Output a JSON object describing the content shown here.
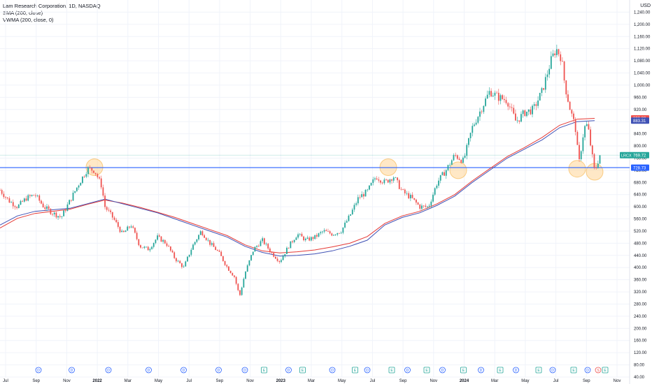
{
  "header": {
    "title": "Lam Research Corporation, 1D, NASDAQ",
    "indicator1": "SMA (200, close)",
    "indicator2": "VWMA (200, close, 0)"
  },
  "currency": "USD",
  "colors": {
    "up": "#26a69a",
    "down": "#ef5350",
    "sma": "#3f51b5",
    "vwma": "#e53935",
    "hline": "#2962ff",
    "circle_fill": "#ffcc80",
    "circle_stroke": "#f5a623",
    "grid": "#f0f3fa",
    "axis_text": "#131722",
    "event_dividend": "#2962ff",
    "event_earnings": "#26a69a",
    "event_split": "#ef5350"
  },
  "chart_data": {
    "type": "candlestick",
    "title": "Lam Research Corporation, 1D, NASDAQ",
    "ylabel": "USD",
    "ylim": [
      40,
      1280
    ],
    "x_ticks": [
      "Jul",
      "Sep",
      "Nov",
      "2022",
      "Mar",
      "May",
      "Jul",
      "Sep",
      "Nov",
      "2023",
      "Mar",
      "May",
      "Jul",
      "Sep",
      "Nov",
      "2024",
      "Mar",
      "May",
      "Jul",
      "Sep",
      "Nov"
    ],
    "y_ticks": [
      "40.00",
      "80.00",
      "120.00",
      "160.00",
      "200.00",
      "240.00",
      "280.00",
      "320.00",
      "360.00",
      "400.00",
      "440.00",
      "480.00",
      "520.00",
      "560.00",
      "600.00",
      "640.00",
      "680.00",
      "720.00",
      "760.00",
      "800.00",
      "840.00",
      "880.00",
      "920.00",
      "960.00",
      "1,000.00",
      "1,040.00",
      "1,080.00",
      "1,120.00",
      "1,160.00",
      "1,200.00",
      "1,240.00"
    ],
    "price_path": [
      {
        "x": 0.0,
        "y": 655
      },
      {
        "x": 0.5,
        "y": 620
      },
      {
        "x": 1.0,
        "y": 600
      },
      {
        "x": 1.5,
        "y": 628
      },
      {
        "x": 2.0,
        "y": 640
      },
      {
        "x": 2.5,
        "y": 600
      },
      {
        "x": 3.0,
        "y": 580
      },
      {
        "x": 3.5,
        "y": 565
      },
      {
        "x": 4.0,
        "y": 620
      },
      {
        "x": 4.5,
        "y": 675
      },
      {
        "x": 5.0,
        "y": 725
      },
      {
        "x": 5.4,
        "y": 720
      },
      {
        "x": 5.8,
        "y": 670
      },
      {
        "x": 6.0,
        "y": 600
      },
      {
        "x": 6.5,
        "y": 560
      },
      {
        "x": 7.0,
        "y": 510
      },
      {
        "x": 7.5,
        "y": 540
      },
      {
        "x": 8.0,
        "y": 470
      },
      {
        "x": 8.5,
        "y": 460
      },
      {
        "x": 9.0,
        "y": 500
      },
      {
        "x": 9.5,
        "y": 480
      },
      {
        "x": 10.0,
        "y": 430
      },
      {
        "x": 10.5,
        "y": 400
      },
      {
        "x": 11.0,
        "y": 470
      },
      {
        "x": 11.5,
        "y": 520
      },
      {
        "x": 12.0,
        "y": 480
      },
      {
        "x": 12.5,
        "y": 450
      },
      {
        "x": 13.0,
        "y": 400
      },
      {
        "x": 13.4,
        "y": 370
      },
      {
        "x": 13.7,
        "y": 305
      },
      {
        "x": 14.0,
        "y": 380
      },
      {
        "x": 14.5,
        "y": 460
      },
      {
        "x": 15.0,
        "y": 490
      },
      {
        "x": 15.5,
        "y": 450
      },
      {
        "x": 16.0,
        "y": 420
      },
      {
        "x": 16.5,
        "y": 470
      },
      {
        "x": 17.0,
        "y": 510
      },
      {
        "x": 17.5,
        "y": 490
      },
      {
        "x": 18.0,
        "y": 500
      },
      {
        "x": 18.5,
        "y": 520
      },
      {
        "x": 19.0,
        "y": 510
      },
      {
        "x": 19.5,
        "y": 520
      },
      {
        "x": 20.0,
        "y": 570
      },
      {
        "x": 20.5,
        "y": 630
      },
      {
        "x": 21.0,
        "y": 650
      },
      {
        "x": 21.5,
        "y": 700
      },
      {
        "x": 22.0,
        "y": 680
      },
      {
        "x": 22.5,
        "y": 700
      },
      {
        "x": 23.0,
        "y": 650
      },
      {
        "x": 23.5,
        "y": 630
      },
      {
        "x": 24.0,
        "y": 600
      },
      {
        "x": 24.5,
        "y": 600
      },
      {
        "x": 25.0,
        "y": 680
      },
      {
        "x": 25.5,
        "y": 720
      },
      {
        "x": 26.0,
        "y": 770
      },
      {
        "x": 26.5,
        "y": 750
      },
      {
        "x": 27.0,
        "y": 860
      },
      {
        "x": 27.5,
        "y": 920
      },
      {
        "x": 28.0,
        "y": 980
      },
      {
        "x": 28.5,
        "y": 960
      },
      {
        "x": 29.0,
        "y": 950
      },
      {
        "x": 29.5,
        "y": 880
      },
      {
        "x": 30.0,
        "y": 910
      },
      {
        "x": 30.5,
        "y": 920
      },
      {
        "x": 31.0,
        "y": 980
      },
      {
        "x": 31.5,
        "y": 1080
      },
      {
        "x": 31.8,
        "y": 1120
      },
      {
        "x": 32.1,
        "y": 1090
      },
      {
        "x": 32.3,
        "y": 1000
      },
      {
        "x": 32.6,
        "y": 920
      },
      {
        "x": 32.9,
        "y": 860
      },
      {
        "x": 33.1,
        "y": 740
      },
      {
        "x": 33.4,
        "y": 860
      },
      {
        "x": 33.6,
        "y": 870
      },
      {
        "x": 33.8,
        "y": 790
      },
      {
        "x": 34.0,
        "y": 715
      },
      {
        "x": 34.3,
        "y": 769.72
      }
    ],
    "sma_200": [
      {
        "x": 0.0,
        "y": 540
      },
      {
        "x": 1.0,
        "y": 570
      },
      {
        "x": 2.0,
        "y": 585
      },
      {
        "x": 3.0,
        "y": 590
      },
      {
        "x": 4.0,
        "y": 595
      },
      {
        "x": 5.0,
        "y": 610
      },
      {
        "x": 6.0,
        "y": 625
      },
      {
        "x": 7.0,
        "y": 610
      },
      {
        "x": 8.0,
        "y": 595
      },
      {
        "x": 9.0,
        "y": 580
      },
      {
        "x": 10.0,
        "y": 560
      },
      {
        "x": 11.0,
        "y": 540
      },
      {
        "x": 12.0,
        "y": 520
      },
      {
        "x": 13.0,
        "y": 500
      },
      {
        "x": 14.0,
        "y": 470
      },
      {
        "x": 15.0,
        "y": 450
      },
      {
        "x": 16.0,
        "y": 438
      },
      {
        "x": 17.0,
        "y": 440
      },
      {
        "x": 18.0,
        "y": 445
      },
      {
        "x": 19.0,
        "y": 455
      },
      {
        "x": 20.0,
        "y": 470
      },
      {
        "x": 21.0,
        "y": 490
      },
      {
        "x": 22.0,
        "y": 540
      },
      {
        "x": 23.0,
        "y": 565
      },
      {
        "x": 24.0,
        "y": 580
      },
      {
        "x": 25.0,
        "y": 605
      },
      {
        "x": 26.0,
        "y": 635
      },
      {
        "x": 27.0,
        "y": 680
      },
      {
        "x": 28.0,
        "y": 720
      },
      {
        "x": 29.0,
        "y": 760
      },
      {
        "x": 30.0,
        "y": 790
      },
      {
        "x": 31.0,
        "y": 820
      },
      {
        "x": 32.0,
        "y": 860
      },
      {
        "x": 33.0,
        "y": 880
      },
      {
        "x": 34.0,
        "y": 883.31
      }
    ],
    "vwma_200": [
      {
        "x": 0.0,
        "y": 530
      },
      {
        "x": 1.0,
        "y": 562
      },
      {
        "x": 2.0,
        "y": 578
      },
      {
        "x": 3.0,
        "y": 585
      },
      {
        "x": 4.0,
        "y": 592
      },
      {
        "x": 5.0,
        "y": 608
      },
      {
        "x": 6.0,
        "y": 622
      },
      {
        "x": 7.0,
        "y": 612
      },
      {
        "x": 8.0,
        "y": 598
      },
      {
        "x": 9.0,
        "y": 582
      },
      {
        "x": 10.0,
        "y": 565
      },
      {
        "x": 11.0,
        "y": 545
      },
      {
        "x": 12.0,
        "y": 525
      },
      {
        "x": 13.0,
        "y": 505
      },
      {
        "x": 14.0,
        "y": 475
      },
      {
        "x": 15.0,
        "y": 455
      },
      {
        "x": 16.0,
        "y": 448
      },
      {
        "x": 17.0,
        "y": 452
      },
      {
        "x": 18.0,
        "y": 458
      },
      {
        "x": 19.0,
        "y": 468
      },
      {
        "x": 20.0,
        "y": 480
      },
      {
        "x": 21.0,
        "y": 502
      },
      {
        "x": 22.0,
        "y": 545
      },
      {
        "x": 23.0,
        "y": 570
      },
      {
        "x": 24.0,
        "y": 585
      },
      {
        "x": 25.0,
        "y": 610
      },
      {
        "x": 26.0,
        "y": 640
      },
      {
        "x": 27.0,
        "y": 685
      },
      {
        "x": 28.0,
        "y": 725
      },
      {
        "x": 29.0,
        "y": 765
      },
      {
        "x": 30.0,
        "y": 795
      },
      {
        "x": 31.0,
        "y": 828
      },
      {
        "x": 32.0,
        "y": 868
      },
      {
        "x": 33.0,
        "y": 888
      },
      {
        "x": 34.0,
        "y": 890.8
      }
    ],
    "horizontal_line": {
      "value": 728.73,
      "label": "728.73"
    },
    "price_labels": [
      {
        "name": "LRCX",
        "value": 769.72,
        "text": "769.72",
        "color": "#26a69a"
      },
      {
        "name": "",
        "value": 890.8,
        "text": "890.80",
        "color": "#ef5350"
      },
      {
        "name": "",
        "value": 883.31,
        "text": "883.31",
        "color": "#3f51b5"
      },
      {
        "name": "",
        "value": 728.73,
        "text": "728.73",
        "color": "#2962ff"
      }
    ],
    "highlights": [
      {
        "x": 5.4,
        "y": 730
      },
      {
        "x": 22.2,
        "y": 730
      },
      {
        "x": 26.2,
        "y": 720
      },
      {
        "x": 33.0,
        "y": 725
      },
      {
        "x": 34.0,
        "y": 715
      }
    ],
    "events": [
      {
        "x": 2.2,
        "type": "D"
      },
      {
        "x": 4.1,
        "type": "D"
      },
      {
        "x": 6.2,
        "type": "D"
      },
      {
        "x": 8.5,
        "type": "D"
      },
      {
        "x": 10.5,
        "type": "D"
      },
      {
        "x": 12.5,
        "type": "D"
      },
      {
        "x": 14.0,
        "type": "D"
      },
      {
        "x": 15.1,
        "type": "E"
      },
      {
        "x": 16.5,
        "type": "D"
      },
      {
        "x": 17.3,
        "type": "E"
      },
      {
        "x": 19.0,
        "type": "D"
      },
      {
        "x": 20.3,
        "type": "E"
      },
      {
        "x": 21.0,
        "type": "D"
      },
      {
        "x": 22.4,
        "type": "E"
      },
      {
        "x": 23.3,
        "type": "D"
      },
      {
        "x": 24.4,
        "type": "E"
      },
      {
        "x": 25.3,
        "type": "D"
      },
      {
        "x": 26.5,
        "type": "E"
      },
      {
        "x": 27.5,
        "type": "D"
      },
      {
        "x": 28.6,
        "type": "E"
      },
      {
        "x": 29.5,
        "type": "D"
      },
      {
        "x": 30.8,
        "type": "E"
      },
      {
        "x": 31.6,
        "type": "D"
      },
      {
        "x": 32.8,
        "type": "E"
      },
      {
        "x": 33.6,
        "type": "D"
      },
      {
        "x": 34.2,
        "type": "S"
      },
      {
        "x": 34.6,
        "type": "E"
      }
    ],
    "grid": true,
    "legend": "top-left"
  }
}
